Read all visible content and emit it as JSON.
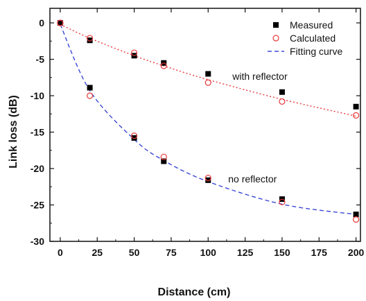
{
  "chart_data": {
    "type": "scatter",
    "xlabel": "Distance (cm)",
    "ylabel": "Link loss (dB)",
    "xlim": [
      -7,
      203
    ],
    "ylim": [
      -30,
      2
    ],
    "xticks": [
      0,
      25,
      50,
      75,
      100,
      125,
      150,
      175,
      200
    ],
    "yticks": [
      0,
      -5,
      -10,
      -15,
      -20,
      -25,
      -30
    ],
    "grid": false,
    "legend_position": "top-right",
    "colors": {
      "measured": "#000000",
      "calculated": "#e8383b",
      "fit_upper": "#e8383b",
      "fit_lower": "#3b48d6"
    },
    "series": [
      {
        "name": "Measured",
        "marker": "filled-square",
        "groups": [
          {
            "x": [
              0,
              20,
              50,
              70,
              100,
              150,
              200
            ],
            "y": [
              0,
              -2.4,
              -4.5,
              -5.5,
              -7.0,
              -9.5,
              -11.5
            ]
          },
          {
            "x": [
              0,
              20,
              50,
              70,
              100,
              150,
              200
            ],
            "y": [
              0,
              -8.9,
              -15.8,
              -19.0,
              -21.6,
              -24.2,
              -26.3
            ]
          }
        ]
      },
      {
        "name": "Calculated",
        "marker": "open-circle",
        "groups": [
          {
            "x": [
              0,
              20,
              50,
              70,
              100,
              150,
              200
            ],
            "y": [
              0,
              -2.1,
              -4.1,
              -5.9,
              -8.2,
              -10.8,
              -12.7
            ]
          },
          {
            "x": [
              0,
              20,
              50,
              70,
              100,
              150,
              200
            ],
            "y": [
              0,
              -10.0,
              -15.5,
              -18.4,
              -21.3,
              -24.6,
              -27.0
            ]
          }
        ]
      },
      {
        "name": "Fitting curve",
        "style": "dashed",
        "groups": [
          {
            "x": [
              0,
              20,
              50,
              70,
              100,
              150,
              200
            ],
            "y": [
              -0.2,
              -2.1,
              -4.5,
              -5.9,
              -7.8,
              -10.5,
              -12.8
            ]
          },
          {
            "x": [
              0,
              20,
              50,
              70,
              100,
              150,
              200
            ],
            "y": [
              -0.2,
              -9.3,
              -16.0,
              -18.9,
              -21.8,
              -24.9,
              -26.3
            ]
          }
        ]
      }
    ],
    "annotations": [
      {
        "text": "with reflector",
        "x": 135,
        "y": -7.8
      },
      {
        "text": "no reflector",
        "x": 130,
        "y": -21.9
      }
    ]
  }
}
